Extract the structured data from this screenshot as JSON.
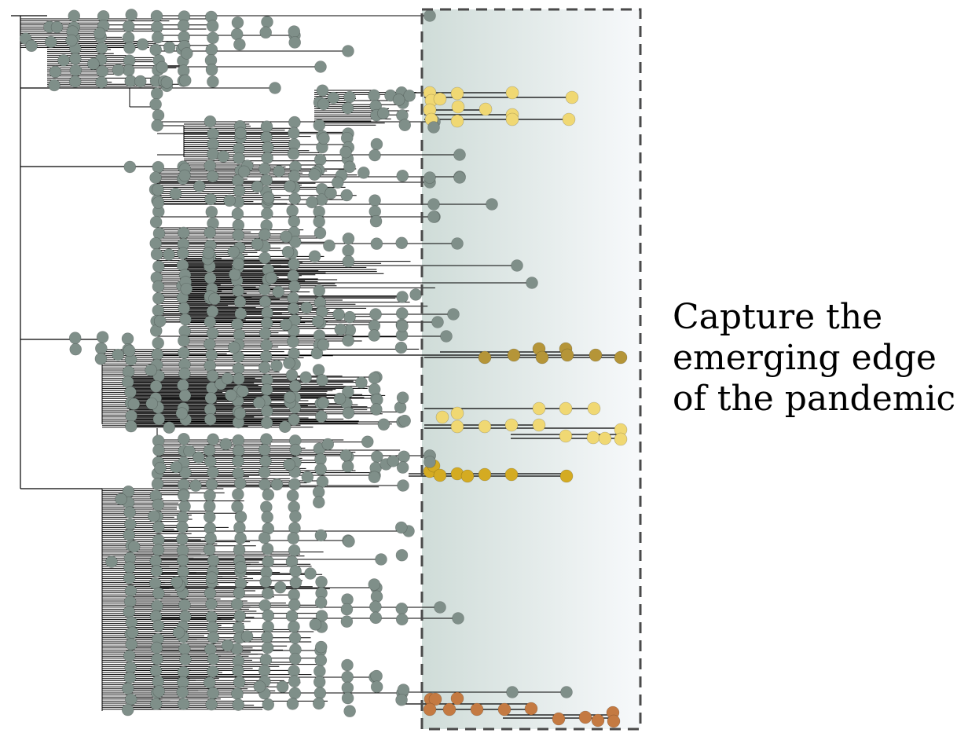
{
  "caption": {
    "lines": [
      "Capture the",
      "emerging edge",
      "of the pandemic"
    ]
  },
  "colors": {
    "background_node": "#7f8f89",
    "branch": "#000000",
    "highlight_box_stroke": "#4a4a4a",
    "highlight_gradient_start": "#cfdcd8",
    "highlight_gradient_end": "#f7f9fb",
    "emerging_clade_pale_yellow": "#f0d873",
    "emerging_clade_olive": "#b59538",
    "emerging_clade_gold": "#d4ab22",
    "emerging_clade_orange": "#c47a42"
  },
  "diagram": {
    "type": "phylogenetic-tree",
    "highlight": "dashed box around the most recent tips",
    "clades": [
      {
        "color_key": "emerging_clade_pale_yellow",
        "group": "upper"
      },
      {
        "color_key": "emerging_clade_olive",
        "group": "middle"
      },
      {
        "color_key": "emerging_clade_pale_yellow",
        "group": "middle-lower"
      },
      {
        "color_key": "emerging_clade_gold",
        "group": "lower-middle"
      },
      {
        "color_key": "emerging_clade_orange",
        "group": "bottom"
      }
    ]
  }
}
